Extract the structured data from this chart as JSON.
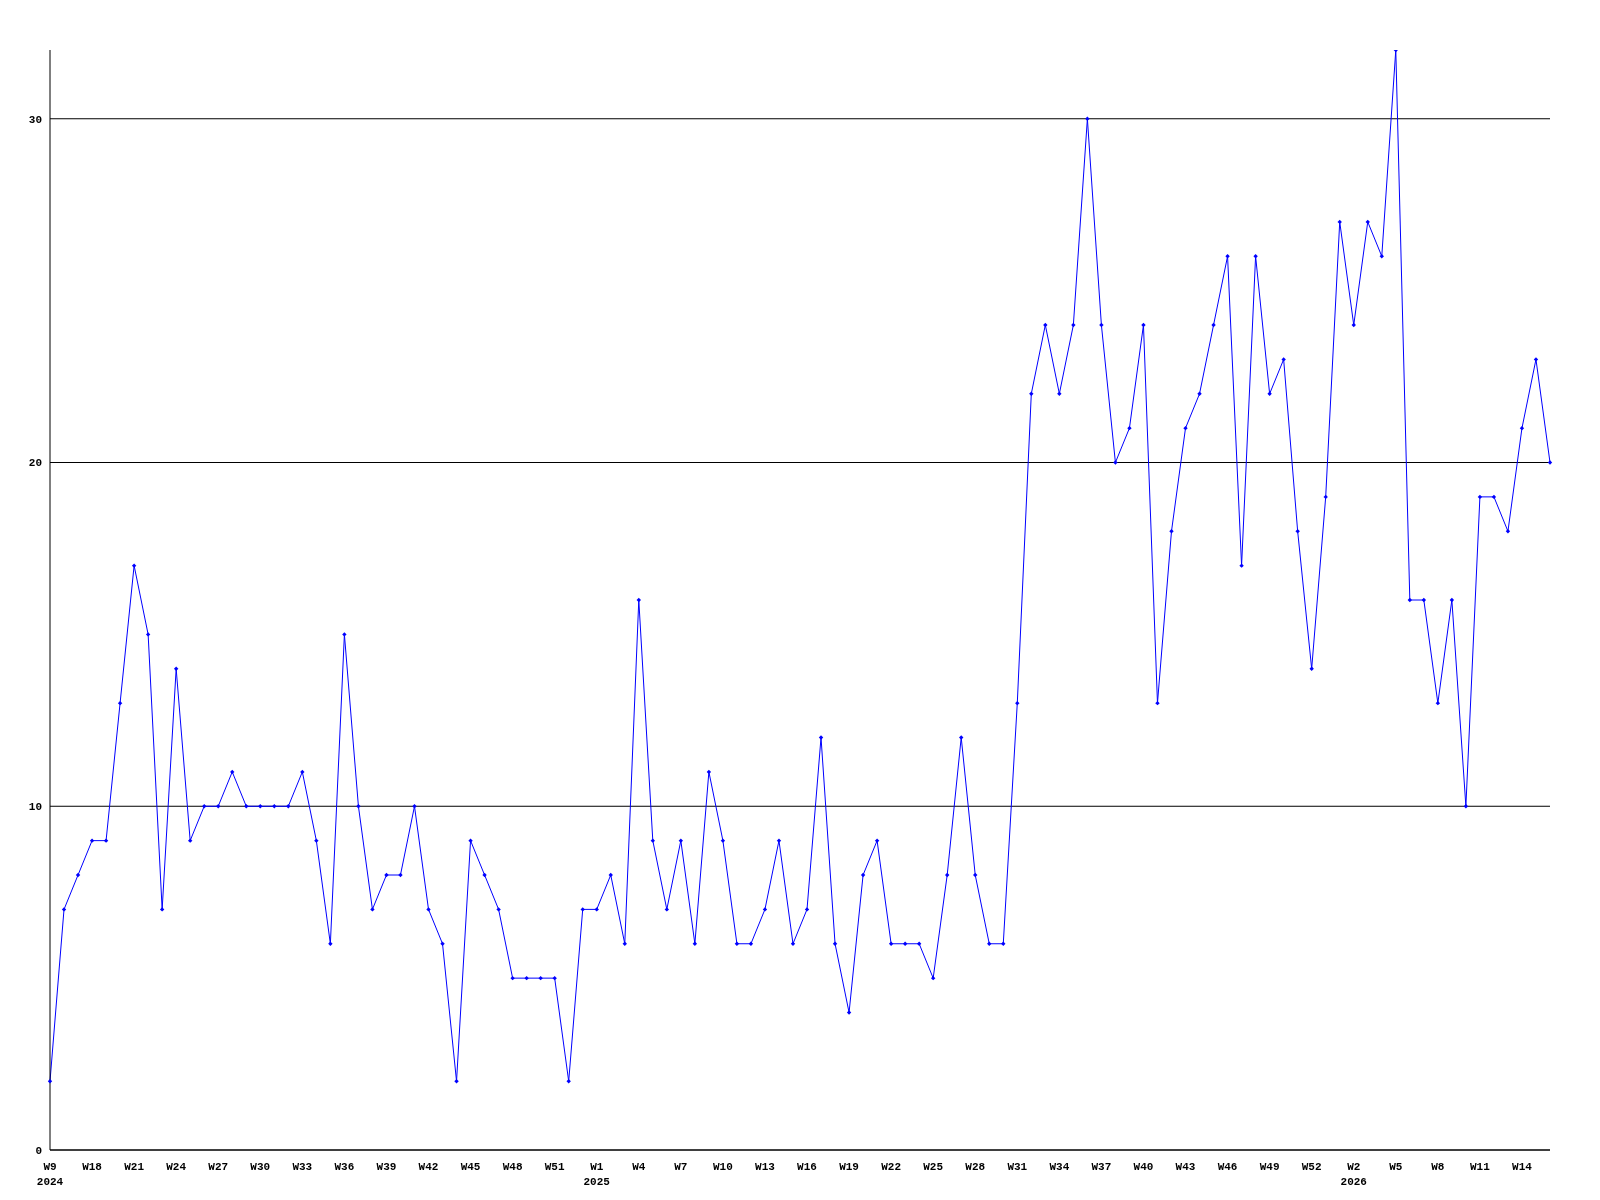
{
  "chart_data": {
    "type": "line",
    "categories": [
      "W9\n2024",
      null,
      null,
      "W18",
      null,
      null,
      "W21",
      null,
      null,
      "W24",
      null,
      null,
      "W27",
      null,
      null,
      "W30",
      null,
      null,
      "W33",
      null,
      null,
      "W36",
      null,
      null,
      "W39",
      null,
      null,
      "W42",
      null,
      null,
      "W45",
      null,
      null,
      "W48",
      null,
      null,
      "W51",
      null,
      null,
      "W1\n2025",
      null,
      null,
      "W4",
      null,
      null,
      "W7",
      null,
      null,
      "W10",
      null,
      null,
      "W13",
      null,
      null,
      "W16",
      null,
      null,
      "W19",
      null,
      null,
      "W22",
      null,
      null,
      "W25",
      null,
      null,
      "W28",
      null,
      null,
      "W31",
      null,
      null,
      "W34",
      null,
      null,
      "W37",
      null,
      null,
      "W40",
      null,
      null,
      "W43",
      null,
      null,
      "W46",
      null,
      null,
      "W49",
      null,
      null,
      "W52",
      null,
      null,
      "W2\n2026",
      null,
      null,
      "W5",
      null,
      null,
      "W8",
      null,
      null,
      "W11",
      null,
      null,
      "W14",
      null,
      null
    ],
    "series": [
      {
        "color": "#0000ff",
        "values": [
          2,
          7,
          8,
          9,
          9,
          13,
          17,
          15,
          7,
          14,
          9,
          10,
          10,
          11,
          10,
          10,
          10,
          10,
          11,
          9,
          6,
          15,
          10,
          7,
          8,
          8,
          10,
          7,
          6,
          2,
          9,
          8,
          7,
          5,
          5,
          5,
          5,
          2,
          7,
          7,
          8,
          6,
          16,
          9,
          7,
          9,
          6,
          11,
          9,
          6,
          6,
          7,
          9,
          6,
          7,
          12,
          6,
          4,
          8,
          9,
          6,
          6,
          6,
          5,
          8,
          12,
          8,
          6,
          6,
          13,
          22,
          24,
          22,
          24,
          30,
          24,
          20,
          21,
          24,
          13,
          18,
          21,
          22,
          24,
          26,
          17,
          26,
          22,
          23,
          18,
          14,
          19,
          27,
          24,
          27,
          26,
          32,
          16,
          16,
          13,
          16,
          10,
          19,
          19,
          18,
          21,
          23,
          20
        ]
      }
    ],
    "ylim": [
      0,
      32
    ],
    "yticks": [
      0,
      10,
      20,
      30
    ],
    "grid": "y",
    "marker": "diamond",
    "line_style": "solid"
  }
}
